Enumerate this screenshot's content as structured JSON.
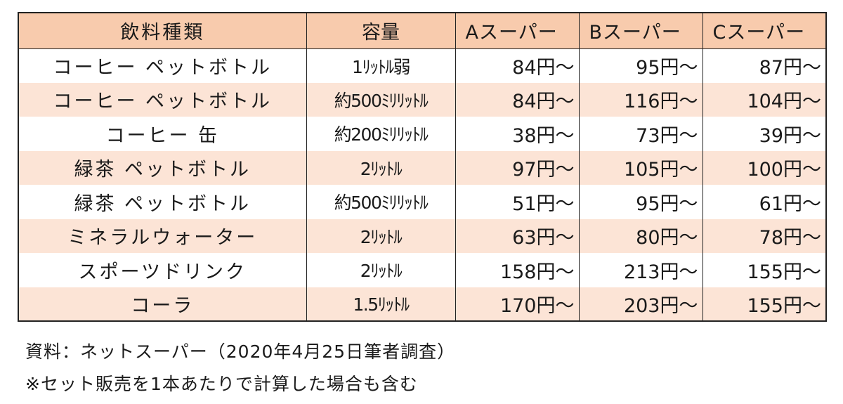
{
  "table": {
    "headers": [
      "飲料種類",
      "容量",
      "Aスーパー",
      "Bスーパー",
      "Cスーパー"
    ],
    "rows": [
      [
        "コーヒー ペットボトル",
        "1ﾘｯﾄﾙ弱",
        "84円～",
        "95円～",
        "87円～"
      ],
      [
        "コーヒー ペットボトル",
        "約500ﾐﾘﾘｯﾄﾙ",
        "84円～",
        "116円～",
        "104円～"
      ],
      [
        "コーヒー 缶",
        "約200ﾐﾘﾘｯﾄﾙ",
        "38円～",
        "73円～",
        "39円～"
      ],
      [
        "緑茶 ペットボトル",
        "2ﾘｯﾄﾙ",
        "97円～",
        "105円～",
        "100円～"
      ],
      [
        "緑茶 ペットボトル",
        "約500ﾐﾘﾘｯﾄﾙ",
        "51円～",
        "95円～",
        "61円～"
      ],
      [
        "ミネラルウォーター",
        "2ﾘｯﾄﾙ",
        "63円～",
        "80円～",
        "78円～"
      ],
      [
        "スポーツドリンク",
        "2ﾘｯﾄﾙ",
        "158円～",
        "213円～",
        "155円～"
      ],
      [
        "コーラ",
        "1.5ﾘｯﾄﾙ",
        "170円～",
        "203円～",
        "155円～"
      ]
    ]
  },
  "notes": {
    "source": "資料：ネットスーパー（2020年4月25日筆者調査）",
    "footnote": "※セット販売を1本あたりで計算した場合も含む"
  },
  "colors": {
    "header_bg": "#f8cbad",
    "alt_row_bg": "#fce4d6",
    "border": "#222222"
  }
}
